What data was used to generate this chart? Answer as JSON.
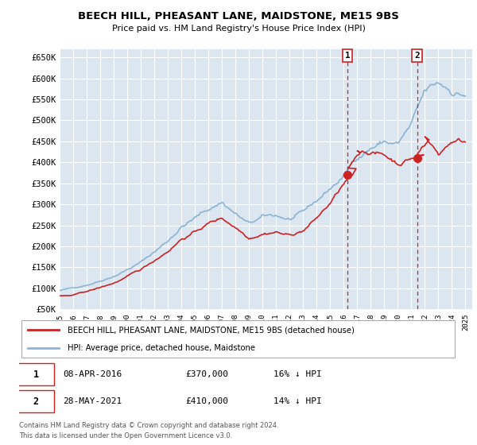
{
  "title": "BEECH HILL, PHEASANT LANE, MAIDSTONE, ME15 9BS",
  "subtitle": "Price paid vs. HM Land Registry's House Price Index (HPI)",
  "ylabel_ticks": [
    "£50K",
    "£100K",
    "£150K",
    "£200K",
    "£250K",
    "£300K",
    "£350K",
    "£400K",
    "£450K",
    "£500K",
    "£550K",
    "£600K",
    "£650K"
  ],
  "ylim": [
    50000,
    670000
  ],
  "yticks": [
    50000,
    100000,
    150000,
    200000,
    250000,
    300000,
    350000,
    400000,
    450000,
    500000,
    550000,
    600000,
    650000
  ],
  "xlim_start": 1995.0,
  "xlim_end": 2025.5,
  "marker1_x": 2016.27,
  "marker2_x": 2021.42,
  "marker1_y": 370000,
  "marker2_y": 410000,
  "marker1_label": "1",
  "marker2_label": "2",
  "legend_line1": "BEECH HILL, PHEASANT LANE, MAIDSTONE, ME15 9BS (detached house)",
  "legend_line2": "HPI: Average price, detached house, Maidstone",
  "table_row1": [
    "1",
    "08-APR-2016",
    "£370,000",
    "16% ↓ HPI"
  ],
  "table_row2": [
    "2",
    "28-MAY-2021",
    "£410,000",
    "14% ↓ HPI"
  ],
  "footnote1": "Contains HM Land Registry data © Crown copyright and database right 2024.",
  "footnote2": "This data is licensed under the Open Government Licence v3.0.",
  "hpi_color": "#8ab4d4",
  "price_color": "#cc2222",
  "dot_color": "#cc2222",
  "background_color": "#ffffff",
  "plot_bg_color": "#dce6f0",
  "grid_color": "#ffffff"
}
